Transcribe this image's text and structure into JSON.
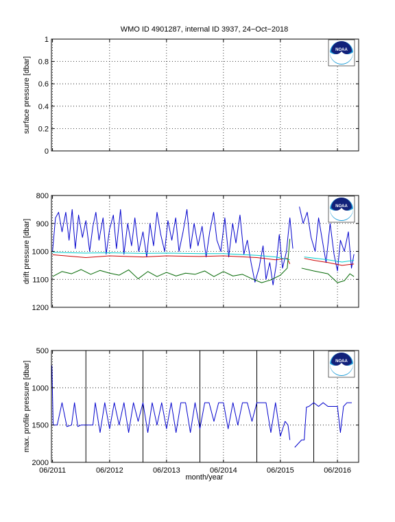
{
  "chart_data": {
    "title": "WMO ID 4901287, internal ID 3937, 24−Oct−2018",
    "xlabel": "month/year",
    "x_ticks": [
      "06/2011",
      "06/2012",
      "06/2013",
      "06/2014",
      "06/2015",
      "06/2016"
    ],
    "x_tick_dates": [
      "2011-06",
      "2012-06",
      "2013-06",
      "2014-06",
      "2015-06",
      "2016-06"
    ],
    "xlim": [
      "2011-05-25",
      "2016-10-15"
    ],
    "logo_text": "NOAA",
    "colors": {
      "blue": "#0000cc",
      "red": "#cc0000",
      "green": "#006600",
      "cyan": "#00cccc",
      "black": "#000000"
    },
    "panels": [
      {
        "type": "line",
        "ylabel": "surface pressure [dbar]",
        "ylim": [
          0,
          1
        ],
        "y_ticks": [
          "0",
          "0.2",
          "0.4",
          "0.6",
          "0.8",
          "1"
        ],
        "y_tick_values": [
          0,
          0.2,
          0.4,
          0.6,
          0.8,
          1
        ],
        "y_reversed": false,
        "grid": true,
        "series": []
      },
      {
        "type": "line",
        "ylabel": "drift pressure [dbar]",
        "ylim": [
          800,
          1200
        ],
        "y_ticks": [
          "800",
          "900",
          "1000",
          "1100",
          "1200"
        ],
        "y_tick_values": [
          800,
          900,
          1000,
          1100,
          1200
        ],
        "y_reversed": true,
        "grid": true,
        "series": [
          {
            "color": "blue",
            "x": [
              "2011-06-01",
              "2011-06-20",
              "2011-07-10",
              "2011-08-01",
              "2011-08-25",
              "2011-09-15",
              "2011-10-05",
              "2011-10-25",
              "2011-11-15",
              "2011-12-10",
              "2012-01-01",
              "2012-01-25",
              "2012-02-15",
              "2012-03-05",
              "2012-03-25",
              "2012-04-20",
              "2012-05-10",
              "2012-06-01",
              "2012-06-25",
              "2012-07-15",
              "2012-08-10",
              "2012-09-01",
              "2012-09-25",
              "2012-10-20",
              "2012-11-10",
              "2012-12-05",
              "2013-01-01",
              "2013-01-25",
              "2013-02-15",
              "2013-03-10",
              "2013-04-01",
              "2013-04-25",
              "2013-05-20",
              "2013-06-10",
              "2013-07-05",
              "2013-07-30",
              "2013-08-20",
              "2013-09-15",
              "2013-10-10",
              "2013-11-01",
              "2013-11-25",
              "2013-12-20",
              "2014-01-15",
              "2014-02-10",
              "2014-03-05",
              "2014-03-30",
              "2014-04-20",
              "2014-05-15",
              "2014-06-10",
              "2014-07-05",
              "2014-07-30",
              "2014-08-20",
              "2014-09-15",
              "2014-10-10",
              "2014-11-01",
              "2014-11-25",
              "2014-12-20",
              "2015-01-15",
              "2015-02-10",
              "2015-03-01",
              "2015-03-25",
              "2015-04-15",
              "2015-05-05",
              "2015-05-25",
              "2015-06-15",
              "2015-07-10",
              "2015-08-01",
              "2015-08-20"
            ],
            "y": [
              1000,
              880,
              860,
              930,
              860,
              960,
              850,
              990,
              870,
              950,
              890,
              1000,
              910,
              860,
              960,
              880,
              1010,
              920,
              870,
              990,
              850,
              1010,
              900,
              980,
              880,
              1000,
              930,
              1020,
              900,
              980,
              860,
              940,
              1000,
              890,
              960,
              880,
              1000,
              930,
              850,
              990,
              900,
              980,
              910,
              1020,
              930,
              860,
              960,
              1000,
              880,
              1020,
              900,
              970,
              870,
              1010,
              960,
              1040,
              1110,
              1060,
              980,
              1100,
              1040,
              1120,
              1050,
              940,
              1060,
              1000,
              880,
              990
            ]
          },
          {
            "color": "blue",
            "x": [
              "2015-10-01",
              "2015-10-25",
              "2015-11-20",
              "2015-12-15",
              "2016-01-10",
              "2016-02-01",
              "2016-02-25",
              "2016-03-20",
              "2016-04-15",
              "2016-05-10",
              "2016-06-01",
              "2016-06-20",
              "2016-07-15",
              "2016-08-10",
              "2016-08-30",
              "2016-09-15"
            ],
            "y": [
              840,
              900,
              860,
              950,
              1000,
              880,
              960,
              1040,
              900,
              1010,
              1070,
              960,
              1000,
              930,
              1060,
              1010
            ]
          },
          {
            "color": "red",
            "x": [
              "2011-06-01",
              "2012-01-01",
              "2012-06-01",
              "2013-01-01",
              "2013-06-01",
              "2014-01-01",
              "2014-06-01",
              "2015-01-01",
              "2015-05-01",
              "2015-07-15",
              "2015-08-01"
            ],
            "y": [
              1012,
              1022,
              1016,
              1020,
              1016,
              1018,
              1016,
              1022,
              1030,
              1025,
              1045
            ]
          },
          {
            "color": "red",
            "x": [
              "2015-11-01",
              "2016-01-01",
              "2016-04-01",
              "2016-07-01",
              "2016-09-15"
            ],
            "y": [
              1025,
              1032,
              1040,
              1050,
              1045
            ]
          },
          {
            "color": "cyan",
            "x": [
              "2011-06-01",
              "2012-01-01",
              "2012-06-01",
              "2013-01-01",
              "2013-06-01",
              "2014-01-01",
              "2014-06-01",
              "2015-01-01",
              "2015-05-01",
              "2015-08-01"
            ],
            "y": [
              1003,
              1006,
              1005,
              1007,
              1006,
              1008,
              1008,
              1014,
              1020,
              1030
            ]
          },
          {
            "color": "cyan",
            "x": [
              "2015-11-01",
              "2016-01-01",
              "2016-04-01",
              "2016-07-01",
              "2016-09-15"
            ],
            "y": [
              1020,
              1024,
              1030,
              1038,
              1032
            ]
          },
          {
            "color": "green",
            "x": [
              "2011-06-01",
              "2011-08-01",
              "2011-10-01",
              "2011-12-01",
              "2012-02-01",
              "2012-04-01",
              "2012-06-01",
              "2012-08-01",
              "2012-10-01",
              "2012-12-01",
              "2013-02-01",
              "2013-04-01",
              "2013-06-01",
              "2013-08-01",
              "2013-10-01",
              "2013-12-01",
              "2014-02-01",
              "2014-04-01",
              "2014-06-01",
              "2014-08-01",
              "2014-10-01",
              "2014-12-01",
              "2015-02-01",
              "2015-04-01",
              "2015-06-01",
              "2015-07-15",
              "2015-08-01"
            ],
            "y": [
              1090,
              1072,
              1080,
              1065,
              1082,
              1068,
              1078,
              1085,
              1066,
              1098,
              1072,
              1090,
              1075,
              1088,
              1078,
              1082,
              1070,
              1090,
              1072,
              1088,
              1082,
              1098,
              1112,
              1102,
              1085,
              1060,
              955
            ]
          },
          {
            "color": "green",
            "x": [
              "2015-10-15",
              "2016-01-01",
              "2016-04-01",
              "2016-06-01",
              "2016-07-15",
              "2016-08-20",
              "2016-09-15"
            ],
            "y": [
              1060,
              1070,
              1080,
              1112,
              1105,
              1080,
              1090
            ]
          }
        ]
      },
      {
        "type": "line",
        "ylabel": "max. profile pressure [dbar]",
        "ylim": [
          500,
          2000
        ],
        "y_ticks": [
          "500",
          "1000",
          "1500",
          "2000"
        ],
        "y_tick_values": [
          500,
          1000,
          1500,
          2000
        ],
        "y_reversed": true,
        "grid": true,
        "vertical_lines_dates": [
          "2012-01-01",
          "2013-01-01",
          "2014-01-01",
          "2015-01-01",
          "2016-01-01"
        ],
        "series": [
          {
            "color": "blue",
            "x": [
              "2011-05-28",
              "2011-06-05",
              "2011-07-01",
              "2011-08-01",
              "2011-09-01",
              "2011-10-01",
              "2011-10-20",
              "2011-11-10",
              "2011-12-01",
              "2012-01-01",
              "2012-02-15",
              "2012-03-01",
              "2012-04-01",
              "2012-05-01",
              "2012-06-01",
              "2012-07-01",
              "2012-08-01",
              "2012-09-01",
              "2012-10-01",
              "2012-11-01",
              "2012-12-01",
              "2013-01-01",
              "2013-02-01",
              "2013-03-01",
              "2013-04-01",
              "2013-05-01",
              "2013-06-01",
              "2013-07-01",
              "2013-08-01",
              "2013-09-01",
              "2013-10-01",
              "2013-11-01",
              "2013-12-01",
              "2014-01-01",
              "2014-02-01",
              "2014-03-01",
              "2014-04-01",
              "2014-05-01",
              "2014-06-01",
              "2014-07-01",
              "2014-08-01",
              "2014-09-01",
              "2014-10-01",
              "2014-11-01",
              "2014-12-01",
              "2015-01-01",
              "2015-02-01",
              "2015-03-01",
              "2015-04-01",
              "2015-05-01",
              "2015-06-01",
              "2015-07-01",
              "2015-07-20",
              "2015-08-01"
            ],
            "y": [
              700,
              1500,
              1500,
              1200,
              1520,
              1500,
              1200,
              1520,
              1500,
              1500,
              1500,
              1200,
              1600,
              1200,
              1550,
              1200,
              1500,
              1200,
              1600,
              1200,
              1450,
              1200,
              1600,
              1200,
              1500,
              1200,
              1550,
              1200,
              1600,
              1200,
              1200,
              1600,
              1200,
              1550,
              1200,
              1200,
              1450,
              1200,
              1200,
              1550,
              1200,
              1500,
              1200,
              1200,
              1450,
              1200,
              1200,
              1200,
              1600,
              1200,
              1650,
              1450,
              1500,
              1700
            ]
          },
          {
            "color": "blue",
            "x": [
              "2015-09-01",
              "2015-10-15",
              "2015-11-01",
              "2015-11-15",
              "2015-12-01",
              "2016-01-01",
              "2016-02-01",
              "2016-03-01",
              "2016-04-01",
              "2016-05-01",
              "2016-06-01",
              "2016-06-20",
              "2016-07-10",
              "2016-08-01",
              "2016-09-01"
            ],
            "y": [
              1800,
              1700,
              1700,
              1260,
              1250,
              1200,
              1250,
              1200,
              1250,
              1250,
              1250,
              1600,
              1250,
              1200,
              1200
            ]
          }
        ]
      }
    ]
  }
}
